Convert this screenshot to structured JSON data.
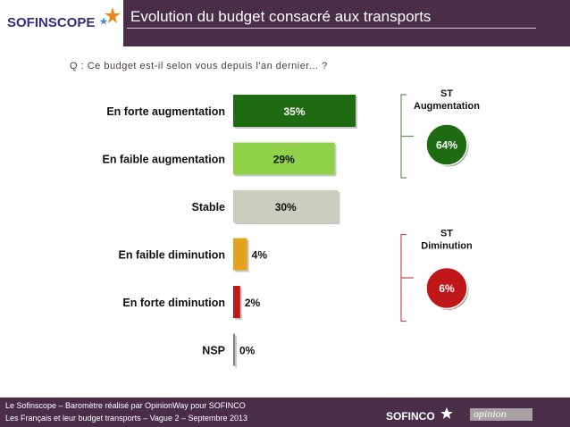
{
  "header": {
    "logo_text": "SOFINSCOPE",
    "title": "Evolution du budget consacré aux transports"
  },
  "question": "Q : Ce budget est-il selon vous depuis l'an dernier... ?",
  "chart_data": {
    "type": "bar",
    "orientation": "horizontal",
    "categories": [
      "En forte augmentation",
      "En faible augmentation",
      "Stable",
      "En faible diminution",
      "En forte diminution",
      "NSP"
    ],
    "values": [
      35,
      29,
      30,
      4,
      2,
      0
    ],
    "value_labels": [
      "35%",
      "29%",
      "30%",
      "4%",
      "2%",
      "0%"
    ],
    "colors": [
      "#1e6b12",
      "#8fd148",
      "#c9cdbe",
      "#e6a21f",
      "#c01818",
      "#808080"
    ],
    "subtotals": [
      {
        "label_line1": "ST",
        "label_line2": "Augmentation",
        "value": 64,
        "value_label": "64%",
        "color": "#1e6b12",
        "bracket_color": "#6b8f63"
      },
      {
        "label_line1": "ST",
        "label_line2": "Diminution",
        "value": 6,
        "value_label": "6%",
        "color": "#c01818",
        "bracket_color": "#c05050"
      }
    ],
    "xlim": [
      0,
      35
    ]
  },
  "footer": {
    "line1": "Le Sofinscope – Baromètre réalisé par OpinionWay pour SOFINCO",
    "line2": "Les Français et leur budget transports – Vague 2 – Septembre 2013",
    "logo_text": "SOFINCO",
    "partner_text": "opinion"
  }
}
